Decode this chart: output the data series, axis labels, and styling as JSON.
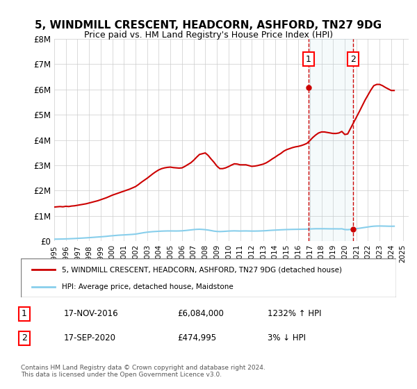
{
  "title": "5, WINDMILL CRESCENT, HEADCORN, ASHFORD, TN27 9DG",
  "subtitle": "Price paid vs. HM Land Registry's House Price Index (HPI)",
  "xlabel": "",
  "ylabel": "",
  "ylim": [
    0,
    8000000
  ],
  "yticks": [
    0,
    1000000,
    2000000,
    3000000,
    4000000,
    5000000,
    6000000,
    7000000,
    8000000
  ],
  "ytick_labels": [
    "£0",
    "£1M",
    "£2M",
    "£3M",
    "£4M",
    "£5M",
    "£6M",
    "£7M",
    "£8M"
  ],
  "xlim_start": 1995.0,
  "xlim_end": 2025.5,
  "xtick_years": [
    1995,
    1996,
    1997,
    1998,
    1999,
    2000,
    2001,
    2002,
    2003,
    2004,
    2005,
    2006,
    2007,
    2008,
    2009,
    2010,
    2011,
    2012,
    2013,
    2014,
    2015,
    2016,
    2017,
    2018,
    2019,
    2020,
    2021,
    2022,
    2023,
    2024,
    2025
  ],
  "hpi_color": "#87CEEB",
  "price_color": "#CC0000",
  "sale1_x": 2016.88,
  "sale1_y": 6084000,
  "sale1_label": "1",
  "sale2_x": 2020.71,
  "sale2_y": 474995,
  "sale2_label": "2",
  "annotation1_date": "17-NOV-2016",
  "annotation1_price": "£6,084,000",
  "annotation1_hpi": "1232% ↑ HPI",
  "annotation2_date": "17-SEP-2020",
  "annotation2_price": "£474,995",
  "annotation2_hpi": "3% ↓ HPI",
  "legend_line1": "5, WINDMILL CRESCENT, HEADCORN, ASHFORD, TN27 9DG (detached house)",
  "legend_line2": "HPI: Average price, detached house, Maidstone",
  "footer": "Contains HM Land Registry data © Crown copyright and database right 2024.\nThis data is licensed under the Open Government Licence v3.0.",
  "bg_color": "#f0f4ff",
  "hpi_line_data_x": [
    1995.0,
    1995.25,
    1995.5,
    1995.75,
    1996.0,
    1996.25,
    1996.5,
    1996.75,
    1997.0,
    1997.25,
    1997.5,
    1997.75,
    1998.0,
    1998.25,
    1998.5,
    1998.75,
    1999.0,
    1999.25,
    1999.5,
    1999.75,
    2000.0,
    2000.25,
    2000.5,
    2000.75,
    2001.0,
    2001.25,
    2001.5,
    2001.75,
    2002.0,
    2002.25,
    2002.5,
    2002.75,
    2003.0,
    2003.25,
    2003.5,
    2003.75,
    2004.0,
    2004.25,
    2004.5,
    2004.75,
    2005.0,
    2005.25,
    2005.5,
    2005.75,
    2006.0,
    2006.25,
    2006.5,
    2006.75,
    2007.0,
    2007.25,
    2007.5,
    2007.75,
    2008.0,
    2008.25,
    2008.5,
    2008.75,
    2009.0,
    2009.25,
    2009.5,
    2009.75,
    2010.0,
    2010.25,
    2010.5,
    2010.75,
    2011.0,
    2011.25,
    2011.5,
    2011.75,
    2012.0,
    2012.25,
    2012.5,
    2012.75,
    2013.0,
    2013.25,
    2013.5,
    2013.75,
    2014.0,
    2014.25,
    2014.5,
    2014.75,
    2015.0,
    2015.25,
    2015.5,
    2015.75,
    2016.0,
    2016.25,
    2016.5,
    2016.75,
    2017.0,
    2017.25,
    2017.5,
    2017.75,
    2018.0,
    2018.25,
    2018.5,
    2018.75,
    2019.0,
    2019.25,
    2019.5,
    2019.75,
    2020.0,
    2020.25,
    2020.5,
    2020.75,
    2021.0,
    2021.25,
    2021.5,
    2021.75,
    2022.0,
    2022.25,
    2022.5,
    2022.75,
    2023.0,
    2023.25,
    2023.5,
    2023.75,
    2024.0,
    2024.25
  ],
  "hpi_line_data_y": [
    80000,
    82000,
    84000,
    86000,
    91000,
    95000,
    100000,
    105000,
    112000,
    118000,
    125000,
    132000,
    140000,
    148000,
    157000,
    165000,
    173000,
    182000,
    192000,
    205000,
    215000,
    225000,
    235000,
    242000,
    248000,
    255000,
    262000,
    270000,
    280000,
    300000,
    320000,
    340000,
    355000,
    368000,
    378000,
    385000,
    392000,
    398000,
    402000,
    405000,
    405000,
    404000,
    403000,
    405000,
    410000,
    420000,
    432000,
    445000,
    458000,
    468000,
    472000,
    465000,
    455000,
    440000,
    420000,
    398000,
    385000,
    380000,
    385000,
    392000,
    400000,
    405000,
    408000,
    405000,
    402000,
    404000,
    405000,
    403000,
    400000,
    400000,
    402000,
    405000,
    410000,
    416000,
    425000,
    432000,
    438000,
    444000,
    450000,
    455000,
    460000,
    463000,
    466000,
    468000,
    470000,
    472000,
    474000,
    476000,
    482000,
    488000,
    492000,
    492000,
    492000,
    492000,
    490000,
    488000,
    488000,
    488000,
    486000,
    490000,
    460000,
    455000,
    465000,
    480000,
    495000,
    510000,
    528000,
    545000,
    562000,
    580000,
    592000,
    598000,
    600000,
    598000,
    595000,
    592000,
    590000,
    592000
  ],
  "price_line_data_x": [
    1995.0,
    1995.25,
    1995.5,
    1995.75,
    1996.0,
    1996.25,
    1996.5,
    1996.75,
    1997.0,
    1997.25,
    1997.5,
    1997.75,
    1998.0,
    1998.25,
    1998.5,
    1998.75,
    1999.0,
    1999.25,
    1999.5,
    1999.75,
    2000.0,
    2000.25,
    2000.5,
    2000.75,
    2001.0,
    2001.25,
    2001.5,
    2001.75,
    2002.0,
    2002.25,
    2002.5,
    2002.75,
    2003.0,
    2003.25,
    2003.5,
    2003.75,
    2004.0,
    2004.25,
    2004.5,
    2004.75,
    2005.0,
    2005.25,
    2005.5,
    2005.75,
    2006.0,
    2006.25,
    2006.5,
    2006.75,
    2007.0,
    2007.25,
    2007.5,
    2007.75,
    2008.0,
    2008.25,
    2008.5,
    2008.75,
    2009.0,
    2009.25,
    2009.5,
    2009.75,
    2010.0,
    2010.25,
    2010.5,
    2010.75,
    2011.0,
    2011.25,
    2011.5,
    2011.75,
    2012.0,
    2012.25,
    2012.5,
    2012.75,
    2013.0,
    2013.25,
    2013.5,
    2013.75,
    2014.0,
    2014.25,
    2014.5,
    2014.75,
    2015.0,
    2015.25,
    2015.5,
    2015.75,
    2016.0,
    2016.25,
    2016.5,
    2016.75,
    2017.0,
    2017.25,
    2017.5,
    2017.75,
    2018.0,
    2018.25,
    2018.5,
    2018.75,
    2019.0,
    2019.25,
    2019.5,
    2019.75,
    2020.0,
    2020.25,
    2020.5,
    2020.75,
    2021.0,
    2021.25,
    2021.5,
    2021.75,
    2022.0,
    2022.25,
    2022.5,
    2022.75,
    2023.0,
    2023.25,
    2023.5,
    2023.75,
    2024.0,
    2024.25
  ],
  "price_line_data_y": [
    1350000,
    1360000,
    1370000,
    1360000,
    1380000,
    1370000,
    1390000,
    1400000,
    1420000,
    1440000,
    1460000,
    1480000,
    1510000,
    1540000,
    1570000,
    1600000,
    1640000,
    1680000,
    1720000,
    1770000,
    1820000,
    1860000,
    1900000,
    1940000,
    1980000,
    2020000,
    2060000,
    2110000,
    2160000,
    2240000,
    2330000,
    2410000,
    2490000,
    2580000,
    2670000,
    2750000,
    2820000,
    2870000,
    2900000,
    2920000,
    2930000,
    2910000,
    2900000,
    2890000,
    2900000,
    2960000,
    3030000,
    3100000,
    3200000,
    3320000,
    3430000,
    3460000,
    3490000,
    3390000,
    3250000,
    3120000,
    2970000,
    2870000,
    2870000,
    2900000,
    2950000,
    3010000,
    3060000,
    3050000,
    3020000,
    3020000,
    3020000,
    2990000,
    2960000,
    2970000,
    2990000,
    3020000,
    3050000,
    3100000,
    3170000,
    3250000,
    3320000,
    3400000,
    3470000,
    3560000,
    3620000,
    3660000,
    3700000,
    3730000,
    3750000,
    3780000,
    3820000,
    3870000,
    3980000,
    4100000,
    4200000,
    4280000,
    4320000,
    4320000,
    4300000,
    4280000,
    4260000,
    4260000,
    4280000,
    4340000,
    4220000,
    4240000,
    4460000,
    4680000,
    4900000,
    5120000,
    5350000,
    5580000,
    5780000,
    5980000,
    6150000,
    6200000,
    6200000,
    6150000,
    6080000,
    6020000,
    5960000,
    5960000
  ]
}
